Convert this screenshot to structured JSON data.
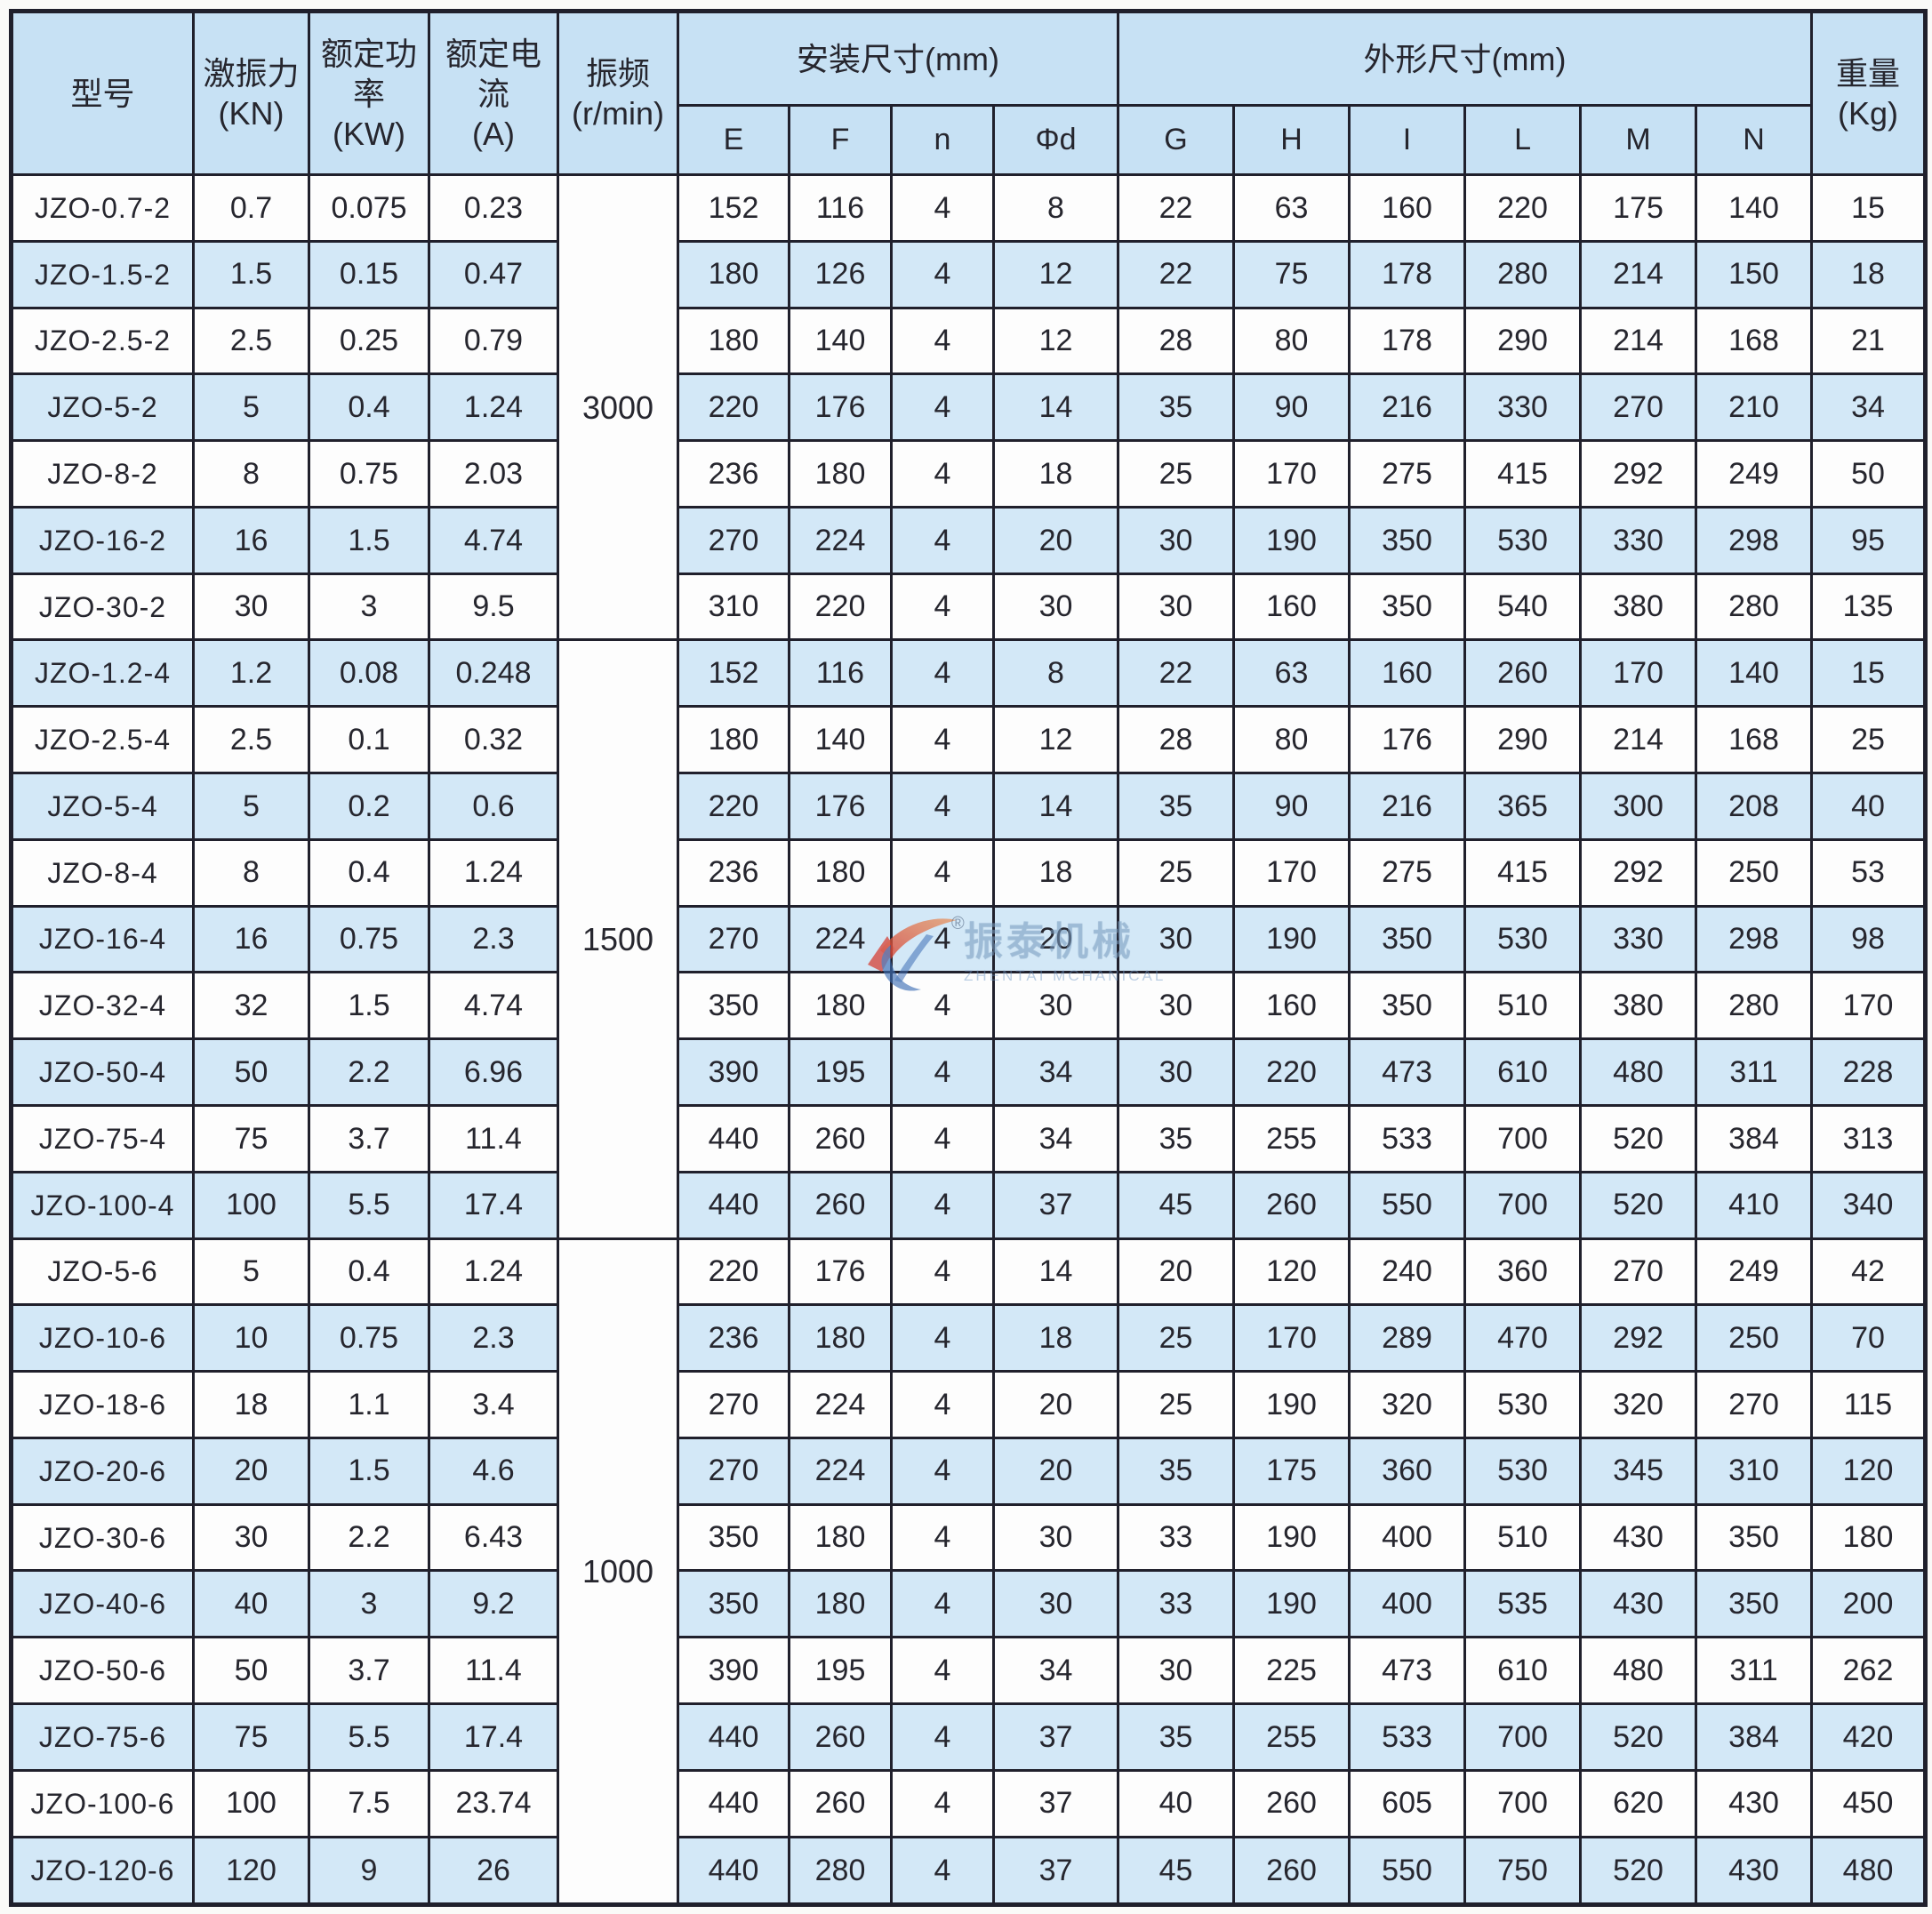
{
  "headers": {
    "model": "型号",
    "force": "激振力\n(KN)",
    "power": "额定功率\n(KW)",
    "current": "额定电流\n(A)",
    "freq": "振频\n(r/min)",
    "mount_group": "安装尺寸(mm)",
    "outline_group": "外形尺寸(mm)",
    "weight": "重量\n(Kg)",
    "mount_cols": [
      "E",
      "F",
      "n",
      "Φd"
    ],
    "outline_cols": [
      "G",
      "H",
      "I",
      "L",
      "M",
      "N"
    ]
  },
  "watermark": {
    "cn": "振泰机械",
    "en": "ZHENTAI MCHANICAL",
    "reg": "®",
    "red": "#d63a2f",
    "orange": "#e8935a",
    "blue": "#3f6fb5"
  },
  "chart_data": {
    "type": "table",
    "title": "JZO 振动电机技术参数表",
    "groups": [
      {
        "freq": "3000",
        "rows": [
          {
            "model": "JZO-0.7-2",
            "force": "0.7",
            "power": "0.075",
            "current": "0.23",
            "E": "152",
            "F": "116",
            "n": "4",
            "d": "8",
            "G": "22",
            "H": "63",
            "I": "160",
            "L": "220",
            "M": "175",
            "N": "140",
            "weight": "15"
          },
          {
            "model": "JZO-1.5-2",
            "force": "1.5",
            "power": "0.15",
            "current": "0.47",
            "E": "180",
            "F": "126",
            "n": "4",
            "d": "12",
            "G": "22",
            "H": "75",
            "I": "178",
            "L": "280",
            "M": "214",
            "N": "150",
            "weight": "18"
          },
          {
            "model": "JZO-2.5-2",
            "force": "2.5",
            "power": "0.25",
            "current": "0.79",
            "E": "180",
            "F": "140",
            "n": "4",
            "d": "12",
            "G": "28",
            "H": "80",
            "I": "178",
            "L": "290",
            "M": "214",
            "N": "168",
            "weight": "21"
          },
          {
            "model": "JZO-5-2",
            "force": "5",
            "power": "0.4",
            "current": "1.24",
            "E": "220",
            "F": "176",
            "n": "4",
            "d": "14",
            "G": "35",
            "H": "90",
            "I": "216",
            "L": "330",
            "M": "270",
            "N": "210",
            "weight": "34"
          },
          {
            "model": "JZO-8-2",
            "force": "8",
            "power": "0.75",
            "current": "2.03",
            "E": "236",
            "F": "180",
            "n": "4",
            "d": "18",
            "G": "25",
            "H": "170",
            "I": "275",
            "L": "415",
            "M": "292",
            "N": "249",
            "weight": "50"
          },
          {
            "model": "JZO-16-2",
            "force": "16",
            "power": "1.5",
            "current": "4.74",
            "E": "270",
            "F": "224",
            "n": "4",
            "d": "20",
            "G": "30",
            "H": "190",
            "I": "350",
            "L": "530",
            "M": "330",
            "N": "298",
            "weight": "95"
          },
          {
            "model": "JZO-30-2",
            "force": "30",
            "power": "3",
            "current": "9.5",
            "E": "310",
            "F": "220",
            "n": "4",
            "d": "30",
            "G": "30",
            "H": "160",
            "I": "350",
            "L": "540",
            "M": "380",
            "N": "280",
            "weight": "135"
          }
        ]
      },
      {
        "freq": "1500",
        "rows": [
          {
            "model": "JZO-1.2-4",
            "force": "1.2",
            "power": "0.08",
            "current": "0.248",
            "E": "152",
            "F": "116",
            "n": "4",
            "d": "8",
            "G": "22",
            "H": "63",
            "I": "160",
            "L": "260",
            "M": "170",
            "N": "140",
            "weight": "15"
          },
          {
            "model": "JZO-2.5-4",
            "force": "2.5",
            "power": "0.1",
            "current": "0.32",
            "E": "180",
            "F": "140",
            "n": "4",
            "d": "12",
            "G": "28",
            "H": "80",
            "I": "176",
            "L": "290",
            "M": "214",
            "N": "168",
            "weight": "25"
          },
          {
            "model": "JZO-5-4",
            "force": "5",
            "power": "0.2",
            "current": "0.6",
            "E": "220",
            "F": "176",
            "n": "4",
            "d": "14",
            "G": "35",
            "H": "90",
            "I": "216",
            "L": "365",
            "M": "300",
            "N": "208",
            "weight": "40"
          },
          {
            "model": "JZO-8-4",
            "force": "8",
            "power": "0.4",
            "current": "1.24",
            "E": "236",
            "F": "180",
            "n": "4",
            "d": "18",
            "G": "25",
            "H": "170",
            "I": "275",
            "L": "415",
            "M": "292",
            "N": "250",
            "weight": "53"
          },
          {
            "model": "JZO-16-4",
            "force": "16",
            "power": "0.75",
            "current": "2.3",
            "E": "270",
            "F": "224",
            "n": "4",
            "d": "20",
            "G": "30",
            "H": "190",
            "I": "350",
            "L": "530",
            "M": "330",
            "N": "298",
            "weight": "98"
          },
          {
            "model": "JZO-32-4",
            "force": "32",
            "power": "1.5",
            "current": "4.74",
            "E": "350",
            "F": "180",
            "n": "4",
            "d": "30",
            "G": "30",
            "H": "160",
            "I": "350",
            "L": "510",
            "M": "380",
            "N": "280",
            "weight": "170"
          },
          {
            "model": "JZO-50-4",
            "force": "50",
            "power": "2.2",
            "current": "6.96",
            "E": "390",
            "F": "195",
            "n": "4",
            "d": "34",
            "G": "30",
            "H": "220",
            "I": "473",
            "L": "610",
            "M": "480",
            "N": "311",
            "weight": "228"
          },
          {
            "model": "JZO-75-4",
            "force": "75",
            "power": "3.7",
            "current": "11.4",
            "E": "440",
            "F": "260",
            "n": "4",
            "d": "34",
            "G": "35",
            "H": "255",
            "I": "533",
            "L": "700",
            "M": "520",
            "N": "384",
            "weight": "313"
          },
          {
            "model": "JZO-100-4",
            "force": "100",
            "power": "5.5",
            "current": "17.4",
            "E": "440",
            "F": "260",
            "n": "4",
            "d": "37",
            "G": "45",
            "H": "260",
            "I": "550",
            "L": "700",
            "M": "520",
            "N": "410",
            "weight": "340"
          }
        ]
      },
      {
        "freq": "1000",
        "rows": [
          {
            "model": "JZO-5-6",
            "force": "5",
            "power": "0.4",
            "current": "1.24",
            "E": "220",
            "F": "176",
            "n": "4",
            "d": "14",
            "G": "20",
            "H": "120",
            "I": "240",
            "L": "360",
            "M": "270",
            "N": "249",
            "weight": "42"
          },
          {
            "model": "JZO-10-6",
            "force": "10",
            "power": "0.75",
            "current": "2.3",
            "E": "236",
            "F": "180",
            "n": "4",
            "d": "18",
            "G": "25",
            "H": "170",
            "I": "289",
            "L": "470",
            "M": "292",
            "N": "250",
            "weight": "70"
          },
          {
            "model": "JZO-18-6",
            "force": "18",
            "power": "1.1",
            "current": "3.4",
            "E": "270",
            "F": "224",
            "n": "4",
            "d": "20",
            "G": "25",
            "H": "190",
            "I": "320",
            "L": "530",
            "M": "320",
            "N": "270",
            "weight": "115"
          },
          {
            "model": "JZO-20-6",
            "force": "20",
            "power": "1.5",
            "current": "4.6",
            "E": "270",
            "F": "224",
            "n": "4",
            "d": "20",
            "G": "35",
            "H": "175",
            "I": "360",
            "L": "530",
            "M": "345",
            "N": "310",
            "weight": "120"
          },
          {
            "model": "JZO-30-6",
            "force": "30",
            "power": "2.2",
            "current": "6.43",
            "E": "350",
            "F": "180",
            "n": "4",
            "d": "30",
            "G": "33",
            "H": "190",
            "I": "400",
            "L": "510",
            "M": "430",
            "N": "350",
            "weight": "180"
          },
          {
            "model": "JZO-40-6",
            "force": "40",
            "power": "3",
            "current": "9.2",
            "E": "350",
            "F": "180",
            "n": "4",
            "d": "30",
            "G": "33",
            "H": "190",
            "I": "400",
            "L": "535",
            "M": "430",
            "N": "350",
            "weight": "200"
          },
          {
            "model": "JZO-50-6",
            "force": "50",
            "power": "3.7",
            "current": "11.4",
            "E": "390",
            "F": "195",
            "n": "4",
            "d": "34",
            "G": "30",
            "H": "225",
            "I": "473",
            "L": "610",
            "M": "480",
            "N": "311",
            "weight": "262"
          },
          {
            "model": "JZO-75-6",
            "force": "75",
            "power": "5.5",
            "current": "17.4",
            "E": "440",
            "F": "260",
            "n": "4",
            "d": "37",
            "G": "35",
            "H": "255",
            "I": "533",
            "L": "700",
            "M": "520",
            "N": "384",
            "weight": "420"
          },
          {
            "model": "JZO-100-6",
            "force": "100",
            "power": "7.5",
            "current": "23.74",
            "E": "440",
            "F": "260",
            "n": "4",
            "d": "37",
            "G": "40",
            "H": "260",
            "I": "605",
            "L": "700",
            "M": "620",
            "N": "430",
            "weight": "450"
          },
          {
            "model": "JZO-120-6",
            "force": "120",
            "power": "9",
            "current": "26",
            "E": "440",
            "F": "280",
            "n": "4",
            "d": "37",
            "G": "45",
            "H": "260",
            "I": "550",
            "L": "750",
            "M": "520",
            "N": "430",
            "weight": "480"
          }
        ]
      }
    ]
  }
}
